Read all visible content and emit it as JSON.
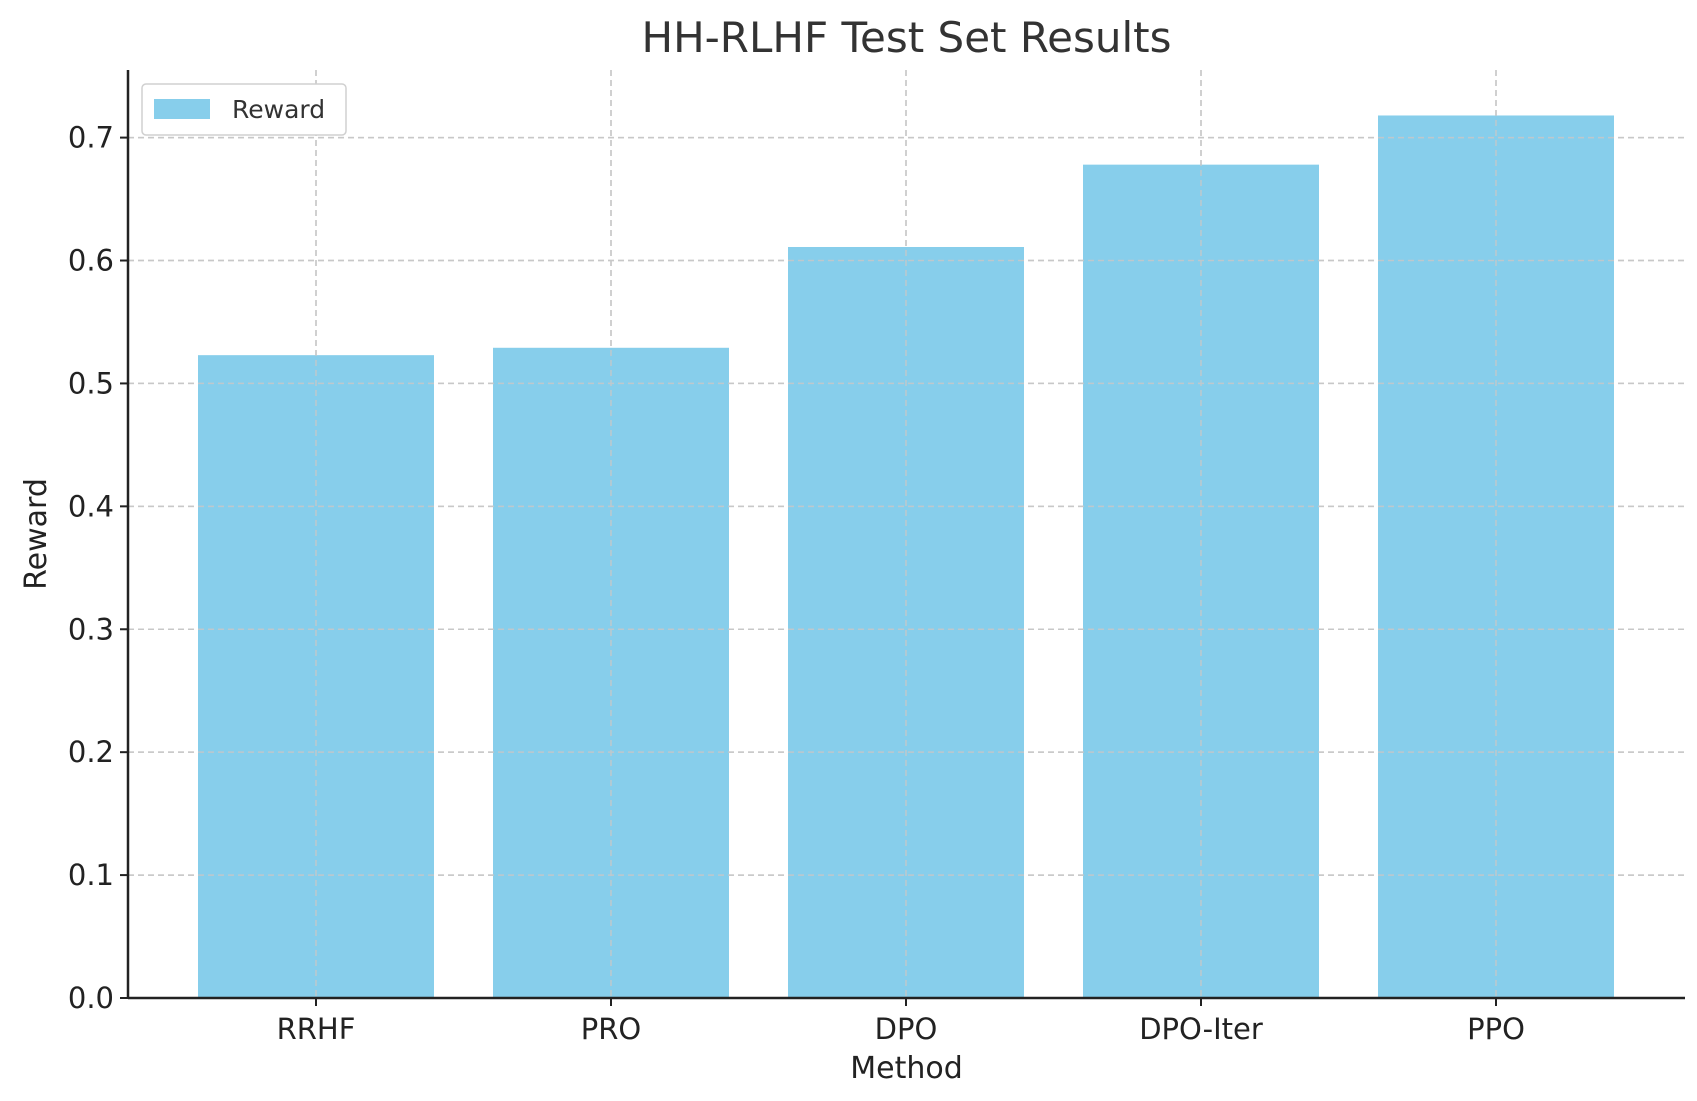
{
  "chart_data": {
    "type": "bar",
    "title": "HH-RLHF Test Set Results",
    "xlabel": "Method",
    "ylabel": "Reward",
    "categories": [
      "RRHF",
      "PRO",
      "DPO",
      "DPO-Iter",
      "PPO"
    ],
    "series": [
      {
        "name": "Reward",
        "values": [
          0.523,
          0.529,
          0.611,
          0.678,
          0.718
        ],
        "color": "#87CEEB"
      }
    ],
    "ylim": [
      0,
      0.755
    ],
    "yticks": [
      "0.0",
      "0.1",
      "0.2",
      "0.3",
      "0.4",
      "0.5",
      "0.6",
      "0.7"
    ],
    "grid": true,
    "legend_position": "top-left"
  }
}
